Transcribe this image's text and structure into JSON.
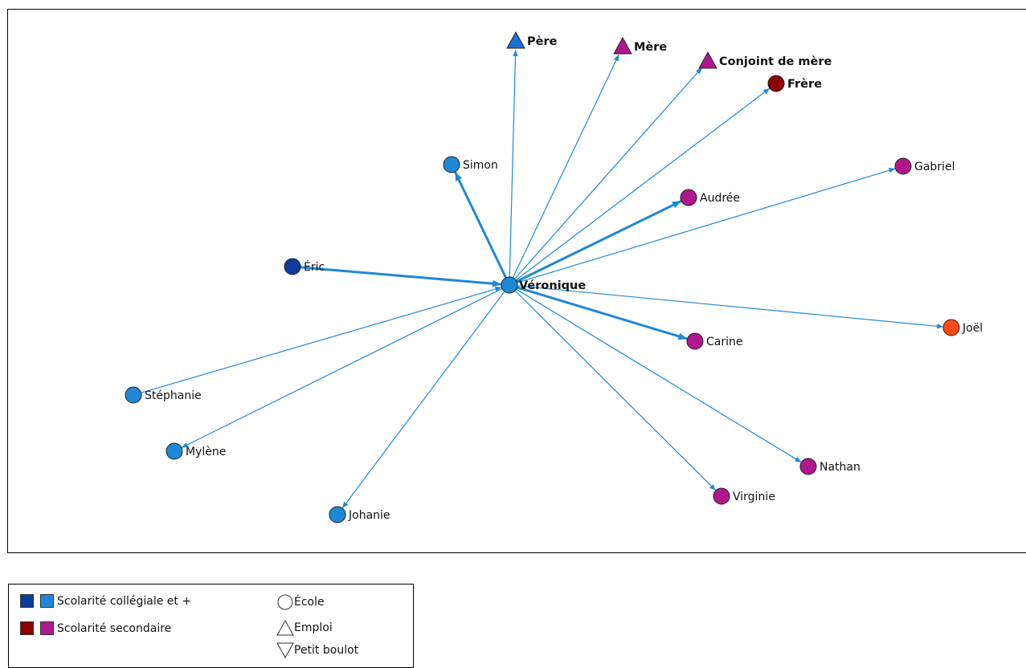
{
  "network": {
    "center": "Véronique",
    "nodes": [
      {
        "id": "veronique",
        "label": "Véronique",
        "shape": "circle",
        "color": "#1e88d6",
        "bold": true
      },
      {
        "id": "pere",
        "label": "Père",
        "shape": "triangle",
        "color": "#1e6fd0",
        "bold": true
      },
      {
        "id": "mere",
        "label": "Mère",
        "shape": "triangle",
        "color": "#b0178f",
        "bold": true
      },
      {
        "id": "conjoint",
        "label": "Conjoint de mère",
        "shape": "triangle",
        "color": "#b0178f",
        "bold": true
      },
      {
        "id": "frere",
        "label": "Frère",
        "shape": "circle",
        "color": "#8b0000",
        "bold": true
      },
      {
        "id": "simon",
        "label": "Simon",
        "shape": "circle",
        "color": "#1e88d6"
      },
      {
        "id": "gabriel",
        "label": "Gabriel",
        "shape": "circle",
        "color": "#b0178f"
      },
      {
        "id": "audree",
        "label": "Audrée",
        "shape": "circle",
        "color": "#b0178f"
      },
      {
        "id": "eric",
        "label": "Éric",
        "shape": "circle",
        "color": "#0d3b9a"
      },
      {
        "id": "joel",
        "label": "Joël",
        "shape": "circle",
        "color": "#ff4a12"
      },
      {
        "id": "carine",
        "label": "Carine",
        "shape": "circle",
        "color": "#b0178f"
      },
      {
        "id": "stephanie",
        "label": "Stéphanie",
        "shape": "circle",
        "color": "#1e88d6"
      },
      {
        "id": "mylene",
        "label": "Mylène",
        "shape": "circle",
        "color": "#1e88d6"
      },
      {
        "id": "johanie",
        "label": "Johanie",
        "shape": "circle",
        "color": "#1e88d6"
      },
      {
        "id": "virginie",
        "label": "Virginie",
        "shape": "circle",
        "color": "#b0178f"
      },
      {
        "id": "nathan",
        "label": "Nathan",
        "shape": "circle",
        "color": "#b0178f"
      }
    ],
    "edges": [
      {
        "from": "veronique",
        "to": "pere",
        "thick": false
      },
      {
        "from": "veronique",
        "to": "mere",
        "thick": false
      },
      {
        "from": "veronique",
        "to": "conjoint",
        "thick": false
      },
      {
        "from": "veronique",
        "to": "frere",
        "thick": false
      },
      {
        "from": "veronique",
        "to": "simon",
        "thick": true
      },
      {
        "from": "veronique",
        "to": "gabriel",
        "thick": false
      },
      {
        "from": "veronique",
        "to": "audree",
        "thick": true
      },
      {
        "from": "eric",
        "to": "veronique",
        "thick": true
      },
      {
        "from": "veronique",
        "to": "joel",
        "thick": false
      },
      {
        "from": "veronique",
        "to": "carine",
        "thick": true
      },
      {
        "from": "stephanie",
        "to": "veronique",
        "thick": false
      },
      {
        "from": "veronique",
        "to": "mylene",
        "thick": false
      },
      {
        "from": "veronique",
        "to": "johanie",
        "thick": false
      },
      {
        "from": "veronique",
        "to": "virginie",
        "thick": false
      },
      {
        "from": "veronique",
        "to": "nathan",
        "thick": false
      }
    ],
    "edge_color": "#1e88d6"
  },
  "legend": {
    "color_entries": [
      {
        "label": "Scolarité collégiale et +",
        "colors": [
          "#0d3b9a",
          "#1e88d6"
        ]
      },
      {
        "label": "Scolarité secondaire",
        "colors": [
          "#8b0000",
          "#b0178f"
        ]
      }
    ],
    "shape_entries": [
      {
        "label": "École",
        "shape": "circle"
      },
      {
        "label": "Emploi",
        "shape": "triangle-up"
      },
      {
        "label": "Petit boulot",
        "shape": "triangle-down"
      }
    ]
  }
}
